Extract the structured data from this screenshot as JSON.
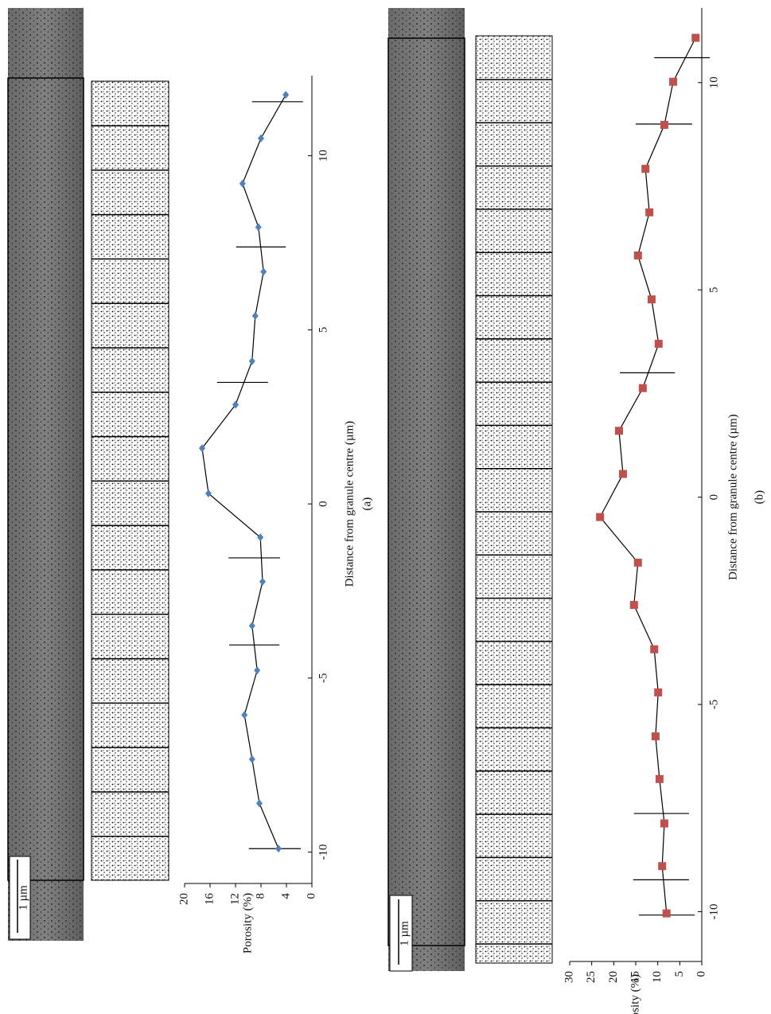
{
  "chart_data": [
    {
      "type": "line",
      "caption": "(a)",
      "x_label": "Distance from granule centre (µm)",
      "y_label": "Porosity (%)",
      "scale_bar": "1 µm",
      "xlim": [
        -10.9,
        12.3
      ],
      "xticks": [
        -10,
        -5,
        0,
        5,
        10
      ],
      "ylim": [
        0,
        20
      ],
      "yticks": [
        0,
        4,
        8,
        12,
        16,
        20
      ],
      "marker": "diamond",
      "color": "#4f81bd",
      "x": [
        -9.9,
        -8.6,
        -7.33,
        -6.06,
        -4.78,
        -3.5,
        -2.23,
        -0.96,
        0.3,
        1.6,
        2.85,
        4.1,
        5.4,
        6.67,
        7.95,
        9.2,
        10.5,
        11.75
      ],
      "values": [
        5.25,
        8.25,
        9.4,
        10.6,
        8.6,
        9.4,
        7.75,
        8.1,
        16.25,
        17.25,
        12,
        9.4,
        8.9,
        7.6,
        8.4,
        10.9,
        8,
        4.1
      ],
      "error_bars": {
        "x": [
          -9.9,
          -4.05,
          -1.55,
          3.49,
          7.38,
          11.55
        ],
        "low": [
          1.75,
          5.1,
          5,
          6.9,
          4.1,
          1.4
        ],
        "high": [
          9.9,
          13,
          13.1,
          14.9,
          11.9,
          9.4
        ]
      }
    },
    {
      "type": "line",
      "caption": "(b)",
      "x_label": "Distance from granule centre (µm)",
      "y_label": "Porosity (%)",
      "scale_bar": "1 µm",
      "xlim": [
        -11.2,
        11.8
      ],
      "xticks": [
        -10,
        -5,
        0,
        5,
        10
      ],
      "ylim": [
        0,
        30
      ],
      "yticks": [
        0,
        5,
        10,
        15,
        20,
        25,
        30
      ],
      "marker": "square",
      "color": "#c0504d",
      "x": [
        -10.04,
        -8.9,
        -7.87,
        -6.8,
        -5.77,
        -4.71,
        -3.67,
        -2.6,
        -1.58,
        -0.48,
        0.56,
        1.6,
        2.63,
        3.7,
        4.77,
        5.83,
        6.87,
        7.92,
        8.98,
        10.02,
        11.08
      ],
      "values": [
        8,
        9,
        8.5,
        9.6,
        10.5,
        9.9,
        10.8,
        15.4,
        14.5,
        23.1,
        17.9,
        18.8,
        13.4,
        9.8,
        11.4,
        14.5,
        11.9,
        12.8,
        8.5,
        6.5,
        1.4
      ],
      "error_bars": {
        "x": [
          -10.08,
          -9.23,
          -7.63,
          3.0,
          9.0,
          10.6
        ],
        "low": [
          1.6,
          2.9,
          2.9,
          6.1,
          2.2,
          -1.8
        ],
        "high": [
          14.3,
          15.6,
          15.4,
          18.6,
          15,
          10.8
        ]
      }
    }
  ]
}
